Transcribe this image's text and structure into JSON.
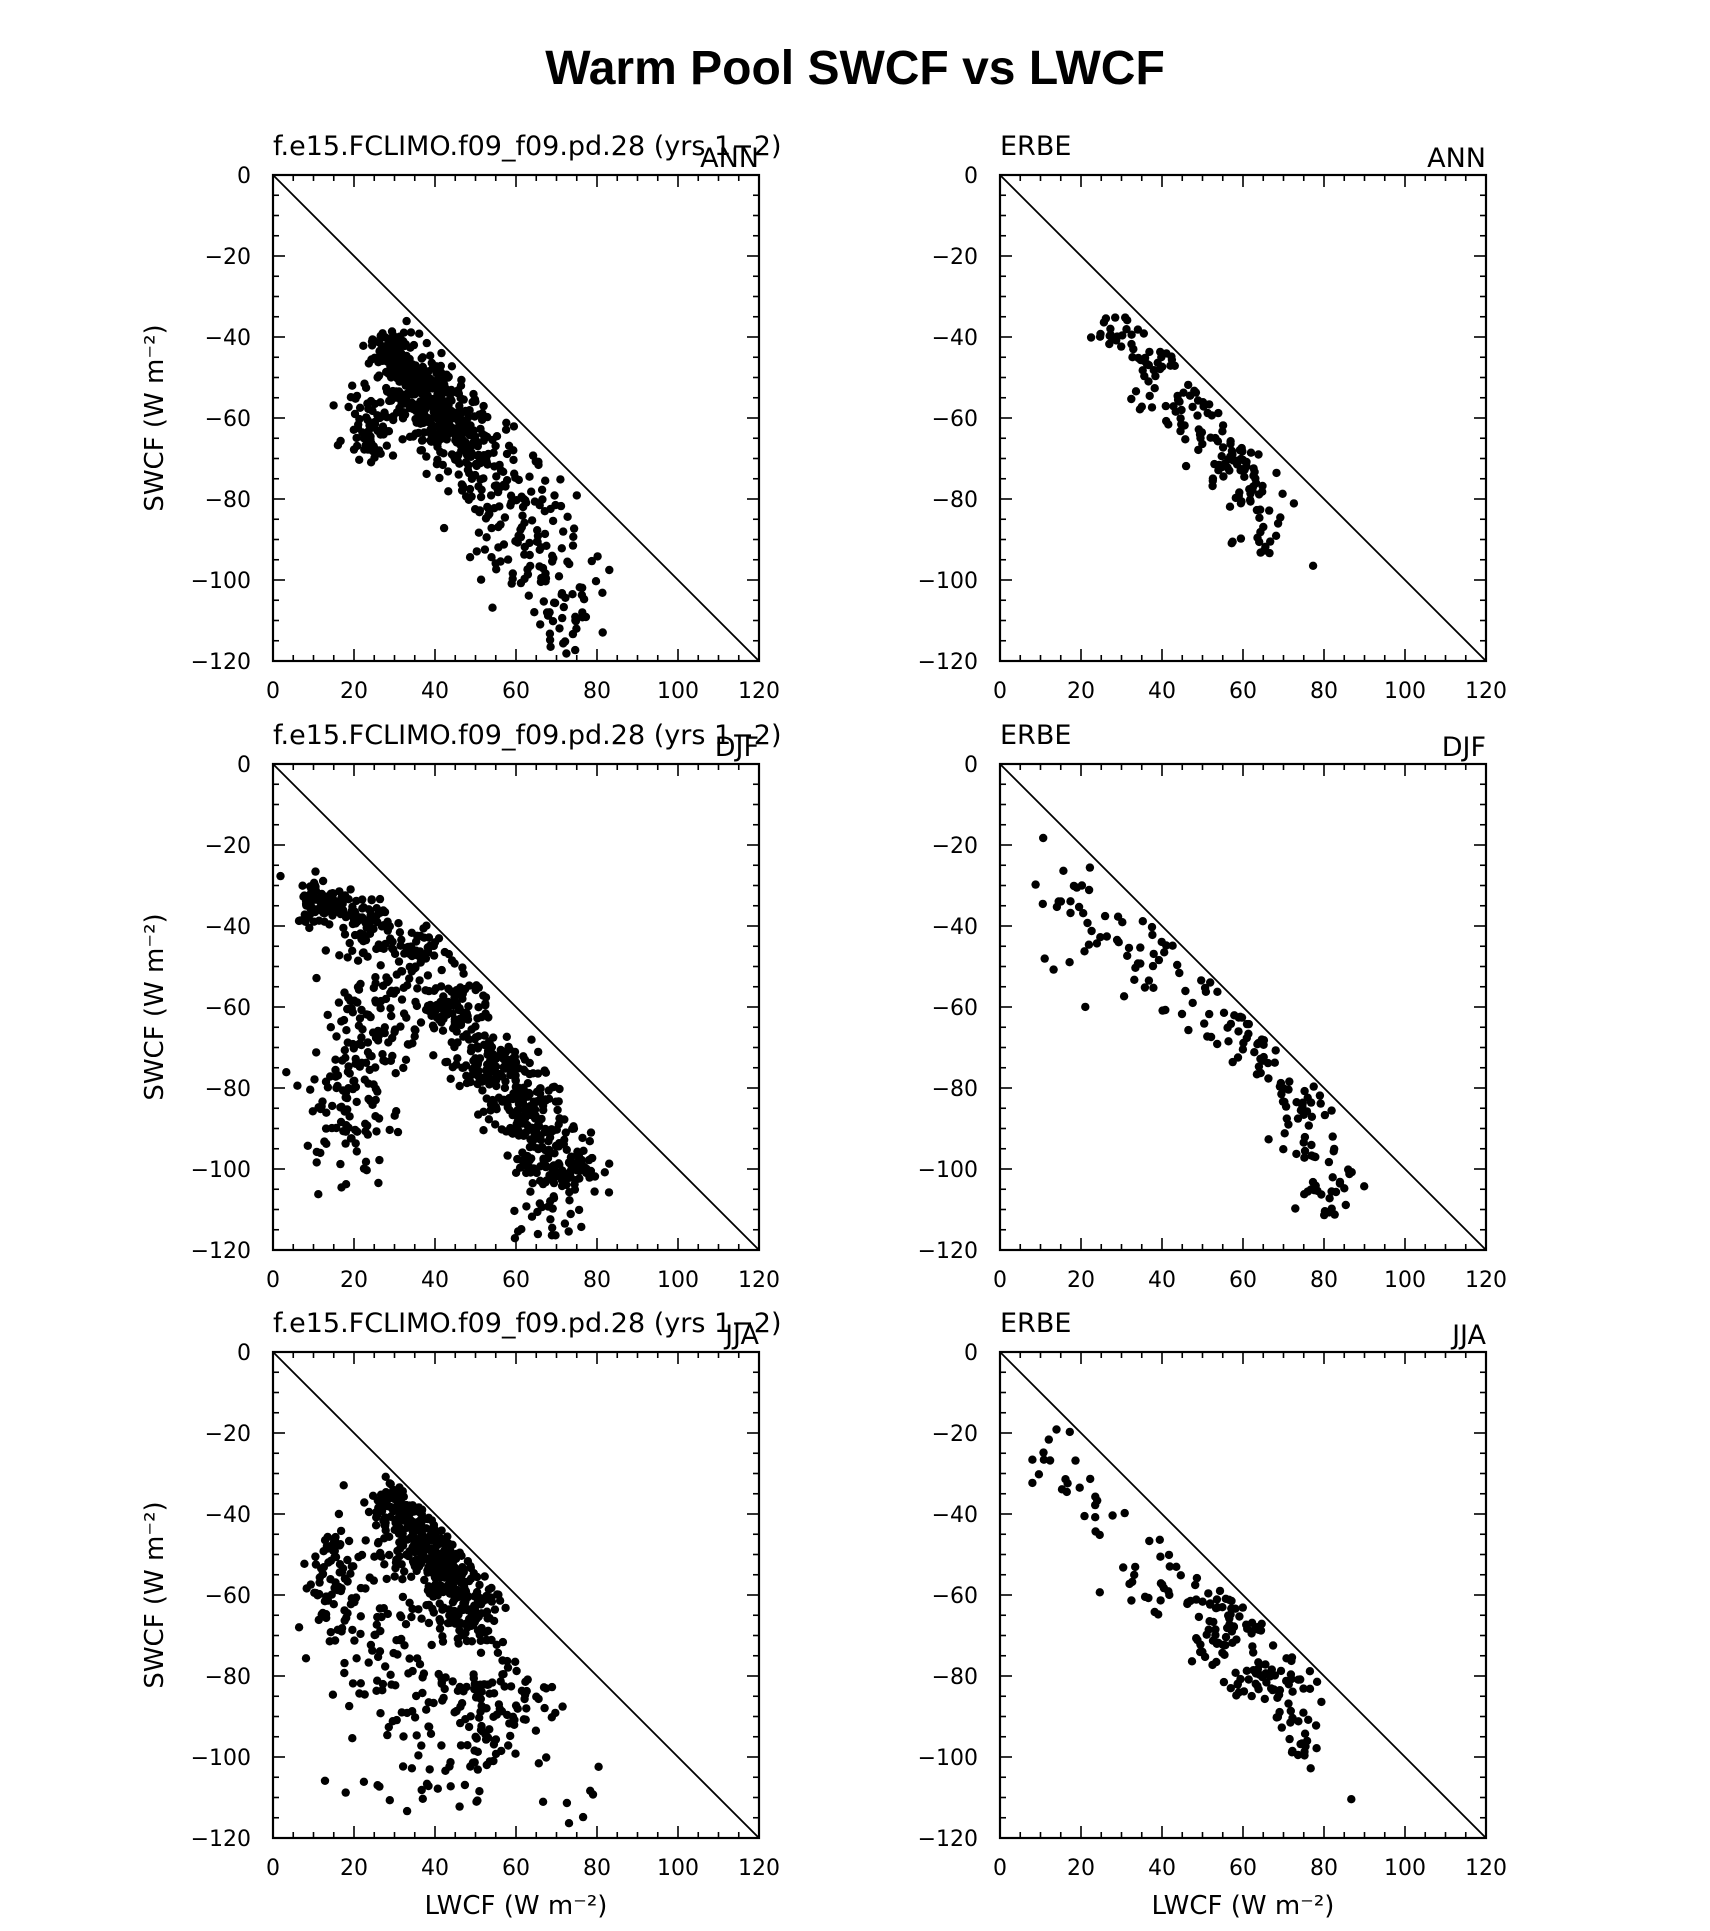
{
  "figure": {
    "title": "Warm Pool SWCF vs LWCF"
  },
  "axis": {
    "xlim": [
      0,
      120
    ],
    "ylim": [
      -120,
      0
    ],
    "x_ticks": [
      "0",
      "20",
      "40",
      "60",
      "80",
      "100",
      "120"
    ],
    "y_ticks": [
      "0",
      "−20",
      "−40",
      "−60",
      "−80",
      "−100",
      "−120"
    ],
    "xlabel": "LWCF (W m⁻²)",
    "ylabel": "SWCF (W m⁻²)"
  },
  "chart_data": [
    {
      "type": "scatter",
      "left_label": "f.e15.FCLIMO.f09_f09.pd.28 (yrs 1−2)",
      "right_label": "ANN",
      "show_ylabel": true,
      "show_xlabel": false,
      "reference_line": "y = -x",
      "x_range": [
        0,
        120
      ],
      "y_range": [
        -120,
        0
      ],
      "clusters": [
        {
          "cx": 30,
          "cy": -45,
          "sx": 3,
          "sy": 3,
          "n": 120
        },
        {
          "cx": 36,
          "cy": -52,
          "sx": 4,
          "sy": 4,
          "n": 140
        },
        {
          "cx": 42,
          "cy": -60,
          "sx": 4,
          "sy": 4,
          "n": 130
        },
        {
          "cx": 48,
          "cy": -67,
          "sx": 5,
          "sy": 5,
          "n": 100
        },
        {
          "cx": 24,
          "cy": -62,
          "sx": 3,
          "sy": 4,
          "n": 70
        },
        {
          "cx": 55,
          "cy": -78,
          "sx": 5,
          "sy": 6,
          "n": 60
        },
        {
          "cx": 63,
          "cy": -92,
          "sx": 6,
          "sy": 8,
          "n": 80
        },
        {
          "cx": 72,
          "cy": -108,
          "sx": 5,
          "sy": 6,
          "n": 40
        }
      ]
    },
    {
      "type": "scatter",
      "left_label": "ERBE",
      "right_label": "ANN",
      "show_ylabel": false,
      "show_xlabel": false,
      "reference_line": "y = -x",
      "x_range": [
        0,
        120
      ],
      "y_range": [
        -120,
        0
      ],
      "clusters": [
        {
          "cx": 28,
          "cy": -38,
          "sx": 3,
          "sy": 3,
          "n": 20
        },
        {
          "cx": 38,
          "cy": -48,
          "sx": 4,
          "sy": 5,
          "n": 35
        },
        {
          "cx": 48,
          "cy": -60,
          "sx": 4,
          "sy": 5,
          "n": 35
        },
        {
          "cx": 57,
          "cy": -70,
          "sx": 4,
          "sy": 4,
          "n": 40
        },
        {
          "cx": 64,
          "cy": -80,
          "sx": 4,
          "sy": 5,
          "n": 30
        },
        {
          "cx": 66,
          "cy": -90,
          "sx": 4,
          "sy": 3,
          "n": 12
        }
      ]
    },
    {
      "type": "scatter",
      "left_label": "f.e15.FCLIMO.f09_f09.pd.28 (yrs 1−2)",
      "right_label": "DJF",
      "show_ylabel": true,
      "show_xlabel": false,
      "reference_line": "y = -x",
      "x_range": [
        0,
        120
      ],
      "y_range": [
        -120,
        0
      ],
      "clusters": [
        {
          "cx": 12,
          "cy": -34,
          "sx": 3,
          "sy": 3,
          "n": 80
        },
        {
          "cx": 22,
          "cy": -38,
          "sx": 4,
          "sy": 3,
          "n": 60
        },
        {
          "cx": 35,
          "cy": -47,
          "sx": 4,
          "sy": 4,
          "n": 60
        },
        {
          "cx": 45,
          "cy": -60,
          "sx": 4,
          "sy": 4,
          "n": 80
        },
        {
          "cx": 53,
          "cy": -74,
          "sx": 5,
          "sy": 4,
          "n": 120
        },
        {
          "cx": 62,
          "cy": -86,
          "sx": 5,
          "sy": 5,
          "n": 130
        },
        {
          "cx": 71,
          "cy": -99,
          "sx": 5,
          "sy": 4,
          "n": 120
        },
        {
          "cx": 25,
          "cy": -60,
          "sx": 6,
          "sy": 10,
          "n": 120
        },
        {
          "cx": 18,
          "cy": -85,
          "sx": 5,
          "sy": 10,
          "n": 90
        },
        {
          "cx": 68,
          "cy": -112,
          "sx": 6,
          "sy": 4,
          "n": 25
        }
      ]
    },
    {
      "type": "scatter",
      "left_label": "ERBE",
      "right_label": "DJF",
      "show_ylabel": false,
      "show_xlabel": false,
      "reference_line": "y = -x",
      "x_range": [
        0,
        120
      ],
      "y_range": [
        -120,
        0
      ],
      "clusters": [
        {
          "cx": 18,
          "cy": -35,
          "sx": 5,
          "sy": 8,
          "n": 25
        },
        {
          "cx": 35,
          "cy": -45,
          "sx": 6,
          "sy": 7,
          "n": 30
        },
        {
          "cx": 50,
          "cy": -58,
          "sx": 5,
          "sy": 6,
          "n": 20
        },
        {
          "cx": 63,
          "cy": -70,
          "sx": 4,
          "sy": 5,
          "n": 30
        },
        {
          "cx": 74,
          "cy": -85,
          "sx": 3,
          "sy": 6,
          "n": 40
        },
        {
          "cx": 80,
          "cy": -103,
          "sx": 4,
          "sy": 5,
          "n": 30
        }
      ]
    },
    {
      "type": "scatter",
      "left_label": "f.e15.FCLIMO.f09_f09.pd.28 (yrs 1−2)",
      "right_label": "JJA",
      "show_ylabel": true,
      "show_xlabel": true,
      "reference_line": "y = -x",
      "x_range": [
        0,
        120
      ],
      "y_range": [
        -120,
        0
      ],
      "clusters": [
        {
          "cx": 30,
          "cy": -38,
          "sx": 3,
          "sy": 3,
          "n": 80
        },
        {
          "cx": 36,
          "cy": -46,
          "sx": 4,
          "sy": 4,
          "n": 120
        },
        {
          "cx": 42,
          "cy": -55,
          "sx": 4,
          "sy": 4,
          "n": 140
        },
        {
          "cx": 48,
          "cy": -65,
          "sx": 4,
          "sy": 4,
          "n": 110
        },
        {
          "cx": 15,
          "cy": -55,
          "sx": 4,
          "sy": 8,
          "n": 80
        },
        {
          "cx": 25,
          "cy": -70,
          "sx": 6,
          "sy": 10,
          "n": 70
        },
        {
          "cx": 50,
          "cy": -88,
          "sx": 10,
          "sy": 9,
          "n": 150
        },
        {
          "cx": 35,
          "cy": -105,
          "sx": 10,
          "sy": 6,
          "n": 20
        },
        {
          "cx": 75,
          "cy": -110,
          "sx": 3,
          "sy": 5,
          "n": 6
        }
      ]
    },
    {
      "type": "scatter",
      "left_label": "ERBE",
      "right_label": "JJA",
      "show_ylabel": false,
      "show_xlabel": true,
      "reference_line": "y = -x",
      "x_range": [
        0,
        120
      ],
      "y_range": [
        -120,
        0
      ],
      "clusters": [
        {
          "cx": 15,
          "cy": -28,
          "sx": 4,
          "sy": 4,
          "n": 15
        },
        {
          "cx": 25,
          "cy": -40,
          "sx": 3,
          "sy": 5,
          "n": 10
        },
        {
          "cx": 40,
          "cy": -56,
          "sx": 6,
          "sy": 5,
          "n": 30
        },
        {
          "cx": 55,
          "cy": -68,
          "sx": 5,
          "sy": 5,
          "n": 60
        },
        {
          "cx": 65,
          "cy": -80,
          "sx": 5,
          "sy": 4,
          "n": 50
        },
        {
          "cx": 75,
          "cy": -92,
          "sx": 4,
          "sy": 5,
          "n": 30
        },
        {
          "cx": 85,
          "cy": -110,
          "sx": 1,
          "sy": 1,
          "n": 1
        }
      ]
    }
  ]
}
